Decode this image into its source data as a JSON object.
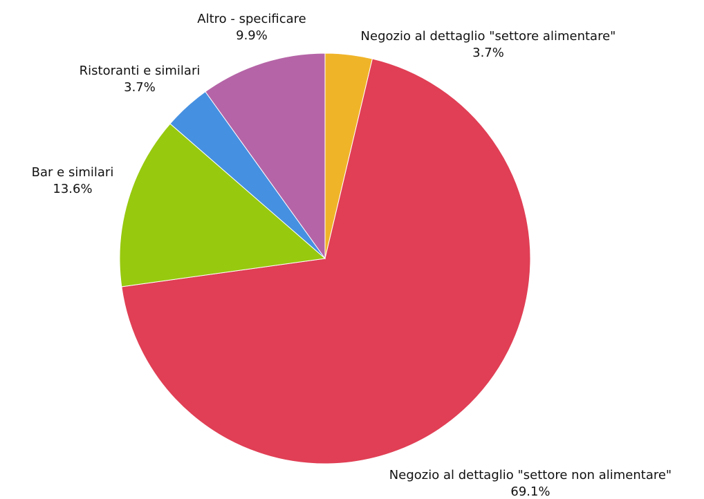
{
  "chart_data": {
    "type": "pie",
    "title": "",
    "slices": [
      {
        "label": "Negozio al dettaglio \"settore alimentare\"",
        "value": 3.7,
        "value_label": "3.7%",
        "color": "#f0b429"
      },
      {
        "label": "Negozio al dettaglio \"settore non alimentare\"",
        "value": 69.1,
        "value_label": "69.1%",
        "color": "#e03f55"
      },
      {
        "label": "Bar e similari",
        "value": 13.6,
        "value_label": "13.6%",
        "color": "#97c90f"
      },
      {
        "label": "Ristoranti e similari",
        "value": 3.7,
        "value_label": "3.7%",
        "color": "#4690e1"
      },
      {
        "label": "Altro - specificare",
        "value": 9.9,
        "value_label": "9.9%",
        "color": "#b565a7"
      }
    ],
    "start_angle_deg": 0,
    "direction": "clockwise"
  }
}
